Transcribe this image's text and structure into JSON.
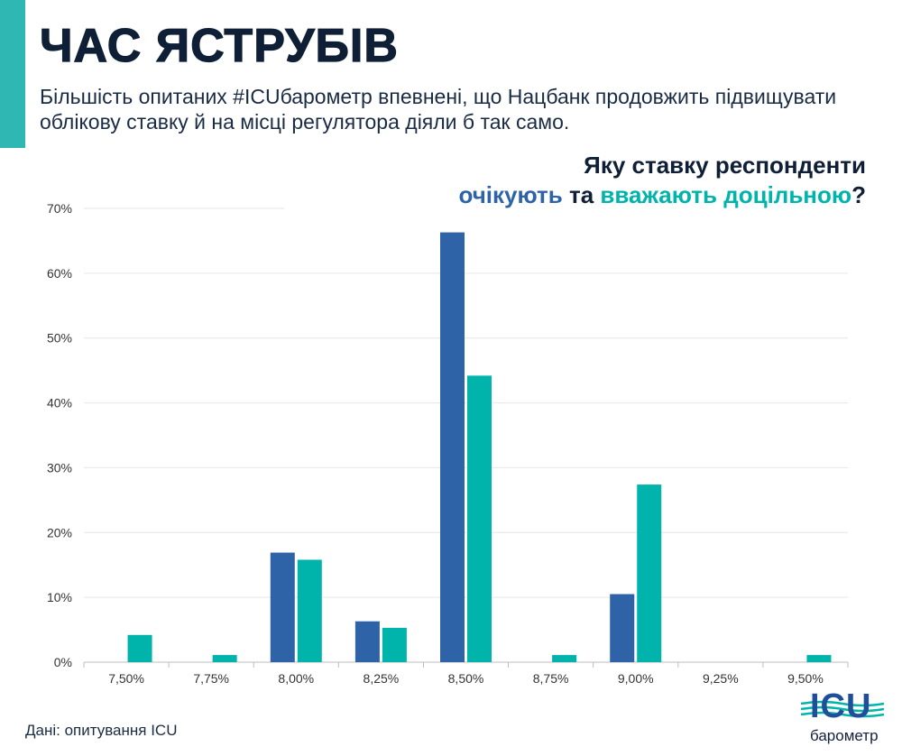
{
  "header": {
    "title": "ЧАС ЯСТРУБІВ",
    "subtitle": "Більшість опитаних #ICUбарометр впевнені, що Нацбанк продовжить підвищувати облікову ставку й на місці регулятора діяли б так само.",
    "question_line1": "Яку ставку респонденти",
    "question_expect": "очікують",
    "question_mid": " та ",
    "question_desired": "вважають доцільною",
    "question_end": "?"
  },
  "footer": {
    "source": "Дані: опитування ICU",
    "logo_text": "ICU",
    "logo_sub": "барометр"
  },
  "colors": {
    "expected": "#2e63a8",
    "desired": "#00b4ac",
    "accent_bar": "#2fb7b4",
    "grid": "#e6e6e6",
    "axis_text": "#333333"
  },
  "chart_data": {
    "type": "bar",
    "categories": [
      "7,50%",
      "7,75%",
      "8,00%",
      "8,25%",
      "8,50%",
      "8,75%",
      "9,00%",
      "9,25%",
      "9,50%"
    ],
    "series": [
      {
        "name": "очікують",
        "values": [
          0,
          0,
          16.9,
          6.3,
          66.3,
          0,
          10.5,
          0,
          0
        ]
      },
      {
        "name": "вважають доцільною",
        "values": [
          4.2,
          1.1,
          15.8,
          5.3,
          44.2,
          1.1,
          27.4,
          0,
          1.1
        ]
      }
    ],
    "ylim": [
      0,
      70
    ],
    "yticks": [
      "0%",
      "10%",
      "20%",
      "30%",
      "40%",
      "50%",
      "60%",
      "70%"
    ],
    "grid": true
  }
}
